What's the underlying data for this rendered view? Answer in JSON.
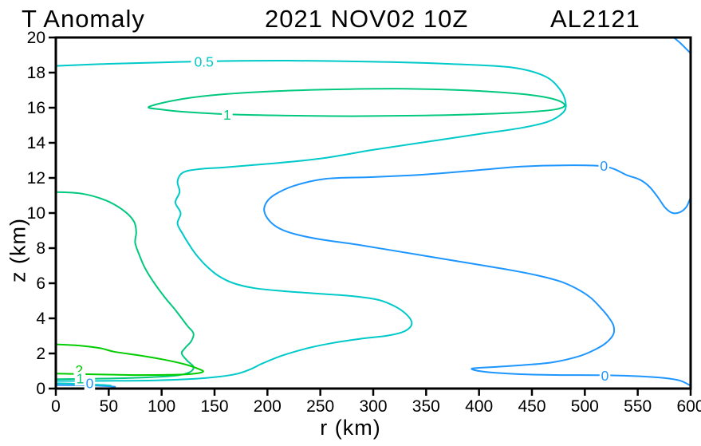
{
  "title": {
    "left": "T Anomaly",
    "center": "2021 NOV02 10Z",
    "right": "AL2121"
  },
  "axes": {
    "x": {
      "label": "r (km)"
    },
    "y": {
      "label": "z (km)"
    }
  },
  "chart_data": {
    "type": "contour",
    "title": "T Anomaly 2021 NOV02 10Z AL2121",
    "xlabel": "r (km)",
    "ylabel": "z (km)",
    "xlim": [
      0,
      600
    ],
    "ylim": [
      0,
      20
    ],
    "x_ticks": [
      0,
      50,
      100,
      150,
      200,
      250,
      300,
      350,
      400,
      450,
      500,
      550,
      600
    ],
    "y_ticks": [
      0,
      2,
      4,
      6,
      8,
      10,
      12,
      14,
      16,
      18,
      20
    ],
    "grid": false,
    "frame_color": "#000000",
    "levels": [
      0,
      0.5,
      1,
      2
    ],
    "level_colors": {
      "0": "#1e96ff",
      "0.5": "#00c9c9",
      "1": "#00c87e",
      "2": "#00cc00"
    },
    "contours": [
      {
        "name": "zero-main",
        "level": "0",
        "closed": false,
        "points": [
          [
            600,
            10.9
          ],
          [
            596,
            10.35
          ],
          [
            590,
            10.05
          ],
          [
            583,
            10.0
          ],
          [
            576,
            10.3
          ],
          [
            569,
            10.9
          ],
          [
            561,
            11.5
          ],
          [
            552,
            11.9
          ],
          [
            540,
            12.15
          ],
          [
            519,
            12.65
          ],
          [
            480,
            12.72
          ],
          [
            440,
            12.65
          ],
          [
            400,
            12.45
          ],
          [
            350,
            12.2
          ],
          [
            300,
            12.05
          ],
          [
            255,
            11.95
          ],
          [
            225,
            11.55
          ],
          [
            207,
            11.05
          ],
          [
            199,
            10.6
          ],
          [
            197,
            10.1
          ],
          [
            202,
            9.55
          ],
          [
            212,
            9.1
          ],
          [
            226,
            8.8
          ],
          [
            250,
            8.5
          ],
          [
            285,
            8.2
          ],
          [
            330,
            7.75
          ],
          [
            380,
            7.25
          ],
          [
            425,
            6.8
          ],
          [
            455,
            6.45
          ],
          [
            477,
            6.1
          ],
          [
            492,
            5.7
          ],
          [
            505,
            5.2
          ],
          [
            515,
            4.6
          ],
          [
            522,
            4.1
          ],
          [
            527,
            3.6
          ],
          [
            527,
            3.1
          ],
          [
            520,
            2.6
          ],
          [
            509,
            2.2
          ],
          [
            495,
            1.85
          ],
          [
            470,
            1.5
          ],
          [
            445,
            1.35
          ],
          [
            420,
            1.25
          ],
          [
            400,
            1.18
          ],
          [
            393,
            1.12
          ],
          [
            402,
            0.98
          ],
          [
            420,
            0.88
          ],
          [
            448,
            0.8
          ],
          [
            480,
            0.77
          ],
          [
            518,
            0.76
          ],
          [
            552,
            0.7
          ],
          [
            575,
            0.6
          ],
          [
            590,
            0.45
          ],
          [
            600,
            0.16
          ]
        ]
      },
      {
        "name": "zero-top-right-corner",
        "level": "0",
        "closed": false,
        "points": [
          [
            584,
            20
          ],
          [
            590,
            19.7
          ],
          [
            595,
            19.4
          ],
          [
            600,
            19.1
          ]
        ]
      },
      {
        "name": "zero-surface-stub",
        "level": "0",
        "closed": false,
        "points": [
          [
            0,
            0.2
          ],
          [
            18,
            0.19
          ],
          [
            34,
            0.17
          ],
          [
            48,
            0.14
          ],
          [
            56,
            0.1
          ]
        ]
      },
      {
        "name": "half-main",
        "level": "0.5",
        "closed": false,
        "points": [
          [
            0,
            18.38
          ],
          [
            50,
            18.5
          ],
          [
            100,
            18.58
          ],
          [
            150,
            18.65
          ],
          [
            220,
            18.68
          ],
          [
            300,
            18.62
          ],
          [
            370,
            18.5
          ],
          [
            430,
            18.3
          ],
          [
            462,
            17.8
          ],
          [
            477,
            17.0
          ],
          [
            482,
            16.2
          ],
          [
            479,
            15.7
          ],
          [
            465,
            15.2
          ],
          [
            440,
            14.85
          ],
          [
            400,
            14.5
          ],
          [
            350,
            14.05
          ],
          [
            300,
            13.6
          ],
          [
            250,
            13.1
          ],
          [
            200,
            12.8
          ],
          [
            160,
            12.6
          ],
          [
            135,
            12.5
          ],
          [
            120,
            12.3
          ],
          [
            115,
            11.8
          ],
          [
            117,
            11.2
          ],
          [
            113,
            10.6
          ],
          [
            118,
            10.0
          ],
          [
            115,
            9.4
          ],
          [
            120,
            8.8
          ],
          [
            126,
            8.2
          ],
          [
            133,
            7.6
          ],
          [
            142,
            7.0
          ],
          [
            153,
            6.45
          ],
          [
            168,
            6.0
          ],
          [
            188,
            5.72
          ],
          [
            215,
            5.55
          ],
          [
            250,
            5.4
          ],
          [
            283,
            5.25
          ],
          [
            305,
            5.05
          ],
          [
            320,
            4.7
          ],
          [
            330,
            4.3
          ],
          [
            336,
            3.85
          ],
          [
            335,
            3.5
          ],
          [
            327,
            3.2
          ],
          [
            312,
            3.0
          ],
          [
            290,
            2.85
          ],
          [
            262,
            2.6
          ],
          [
            238,
            2.3
          ],
          [
            215,
            1.9
          ],
          [
            196,
            1.45
          ],
          [
            184,
            1.1
          ],
          [
            172,
            0.85
          ],
          [
            155,
            0.68
          ],
          [
            130,
            0.55
          ],
          [
            95,
            0.47
          ],
          [
            55,
            0.44
          ],
          [
            0,
            0.43
          ]
        ]
      },
      {
        "name": "half-surface-stub",
        "level": "0.5",
        "closed": false,
        "points": [
          [
            0,
            0.3
          ],
          [
            20,
            0.27
          ],
          [
            40,
            0.22
          ],
          [
            52,
            0.17
          ]
        ]
      },
      {
        "name": "one-upper-lens",
        "level": "1",
        "closed": true,
        "points": [
          [
            88,
            16.05
          ],
          [
            115,
            16.45
          ],
          [
            155,
            16.75
          ],
          [
            210,
            16.95
          ],
          [
            270,
            17.05
          ],
          [
            330,
            17.08
          ],
          [
            390,
            16.98
          ],
          [
            440,
            16.78
          ],
          [
            470,
            16.5
          ],
          [
            481,
            16.15
          ],
          [
            472,
            15.9
          ],
          [
            445,
            15.75
          ],
          [
            400,
            15.63
          ],
          [
            340,
            15.55
          ],
          [
            280,
            15.52
          ],
          [
            220,
            15.55
          ],
          [
            165,
            15.62
          ],
          [
            125,
            15.75
          ],
          [
            100,
            15.9
          ]
        ]
      },
      {
        "name": "one-inner-core",
        "level": "1",
        "closed": false,
        "points": [
          [
            0,
            11.2
          ],
          [
            25,
            11.1
          ],
          [
            48,
            10.7
          ],
          [
            65,
            10.1
          ],
          [
            74,
            9.5
          ],
          [
            76,
            8.9
          ],
          [
            75,
            8.3
          ],
          [
            79,
            7.6
          ],
          [
            84,
            6.9
          ],
          [
            92,
            6.1
          ],
          [
            103,
            5.2
          ],
          [
            114,
            4.4
          ],
          [
            124,
            3.6
          ],
          [
            130,
            3.15
          ],
          [
            128,
            2.7
          ],
          [
            122,
            2.3
          ],
          [
            119,
            2.0
          ],
          [
            124,
            1.6
          ],
          [
            130,
            1.25
          ],
          [
            127,
            0.95
          ],
          [
            115,
            0.75
          ],
          [
            90,
            0.65
          ],
          [
            55,
            0.58
          ],
          [
            25,
            0.55
          ],
          [
            0,
            0.53
          ]
        ]
      },
      {
        "name": "two-low-level",
        "level": "2",
        "closed": false,
        "points": [
          [
            0,
            2.52
          ],
          [
            22,
            2.45
          ],
          [
            42,
            2.3
          ],
          [
            55,
            2.1
          ],
          [
            78,
            1.9
          ],
          [
            102,
            1.65
          ],
          [
            122,
            1.38
          ],
          [
            135,
            1.12
          ],
          [
            139,
            0.95
          ],
          [
            128,
            0.83
          ],
          [
            105,
            0.78
          ],
          [
            75,
            0.77
          ],
          [
            45,
            0.8
          ],
          [
            20,
            0.83
          ],
          [
            0,
            0.85
          ]
        ]
      }
    ],
    "contour_labels": [
      {
        "text": "0.5",
        "r": 140,
        "z": 18.62,
        "level": "0.5"
      },
      {
        "text": "1",
        "r": 162,
        "z": 15.58,
        "level": "1"
      },
      {
        "text": "0",
        "r": 518,
        "z": 12.68,
        "level": "0"
      },
      {
        "text": "0",
        "r": 519,
        "z": 0.73,
        "level": "0"
      },
      {
        "text": "2",
        "r": 22,
        "z": 1.05,
        "level": "2"
      },
      {
        "text": "1",
        "r": 23,
        "z": 0.56,
        "level": "1"
      },
      {
        "text": "0",
        "r": 32,
        "z": 0.3,
        "level": "0"
      }
    ]
  }
}
